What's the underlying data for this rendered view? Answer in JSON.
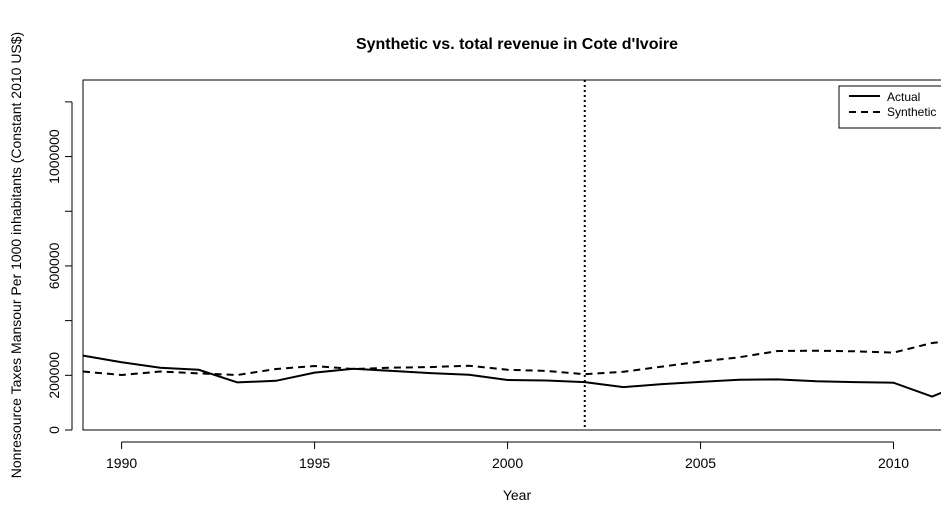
{
  "chart_data": {
    "type": "line",
    "title": "Synthetic vs. total revenue in Cote d'Ivoire",
    "xlabel": "Year",
    "ylabel": "Nonresource Taxes Mansour Per 1000 inhabitants (Constant 2010 US$)",
    "xlim": [
      1989,
      2011.8
    ],
    "ylim": [
      0,
      1280000
    ],
    "x_ticks": [
      1990,
      1995,
      2000,
      2005,
      2010
    ],
    "x_tick_labels": [
      "1990",
      "1995",
      "2000",
      "2005",
      "2010"
    ],
    "y_ticks": [
      0,
      200000,
      400000,
      600000,
      800000,
      1000000,
      1200000
    ],
    "y_tick_labels": [
      "0",
      "200000",
      "",
      "600000",
      "",
      "1000000",
      ""
    ],
    "vline_x": 2002,
    "grid": false,
    "legend_position": "top-right",
    "x": [
      1989,
      1990,
      1991,
      1992,
      1993,
      1994,
      1995,
      1996,
      1997,
      1998,
      1999,
      2000,
      2001,
      2002,
      2003,
      2004,
      2005,
      2006,
      2007,
      2008,
      2009,
      2010,
      2011,
      2012
    ],
    "series": [
      {
        "name": "Actual",
        "style": "solid",
        "values": [
          272000,
          248000,
          228000,
          220000,
          174000,
          180000,
          210000,
          224000,
          216000,
          208000,
          202000,
          183000,
          181000,
          175000,
          157000,
          168000,
          176000,
          184000,
          185000,
          178000,
          175000,
          173000,
          122000,
          180000
        ]
      },
      {
        "name": "Synthetic",
        "style": "dashed",
        "values": [
          214000,
          201000,
          214000,
          207000,
          201000,
          223000,
          234000,
          223000,
          228000,
          230000,
          235000,
          220000,
          216000,
          204000,
          213000,
          232000,
          250000,
          266000,
          289000,
          290000,
          288000,
          283000,
          318000,
          335000
        ]
      }
    ]
  }
}
